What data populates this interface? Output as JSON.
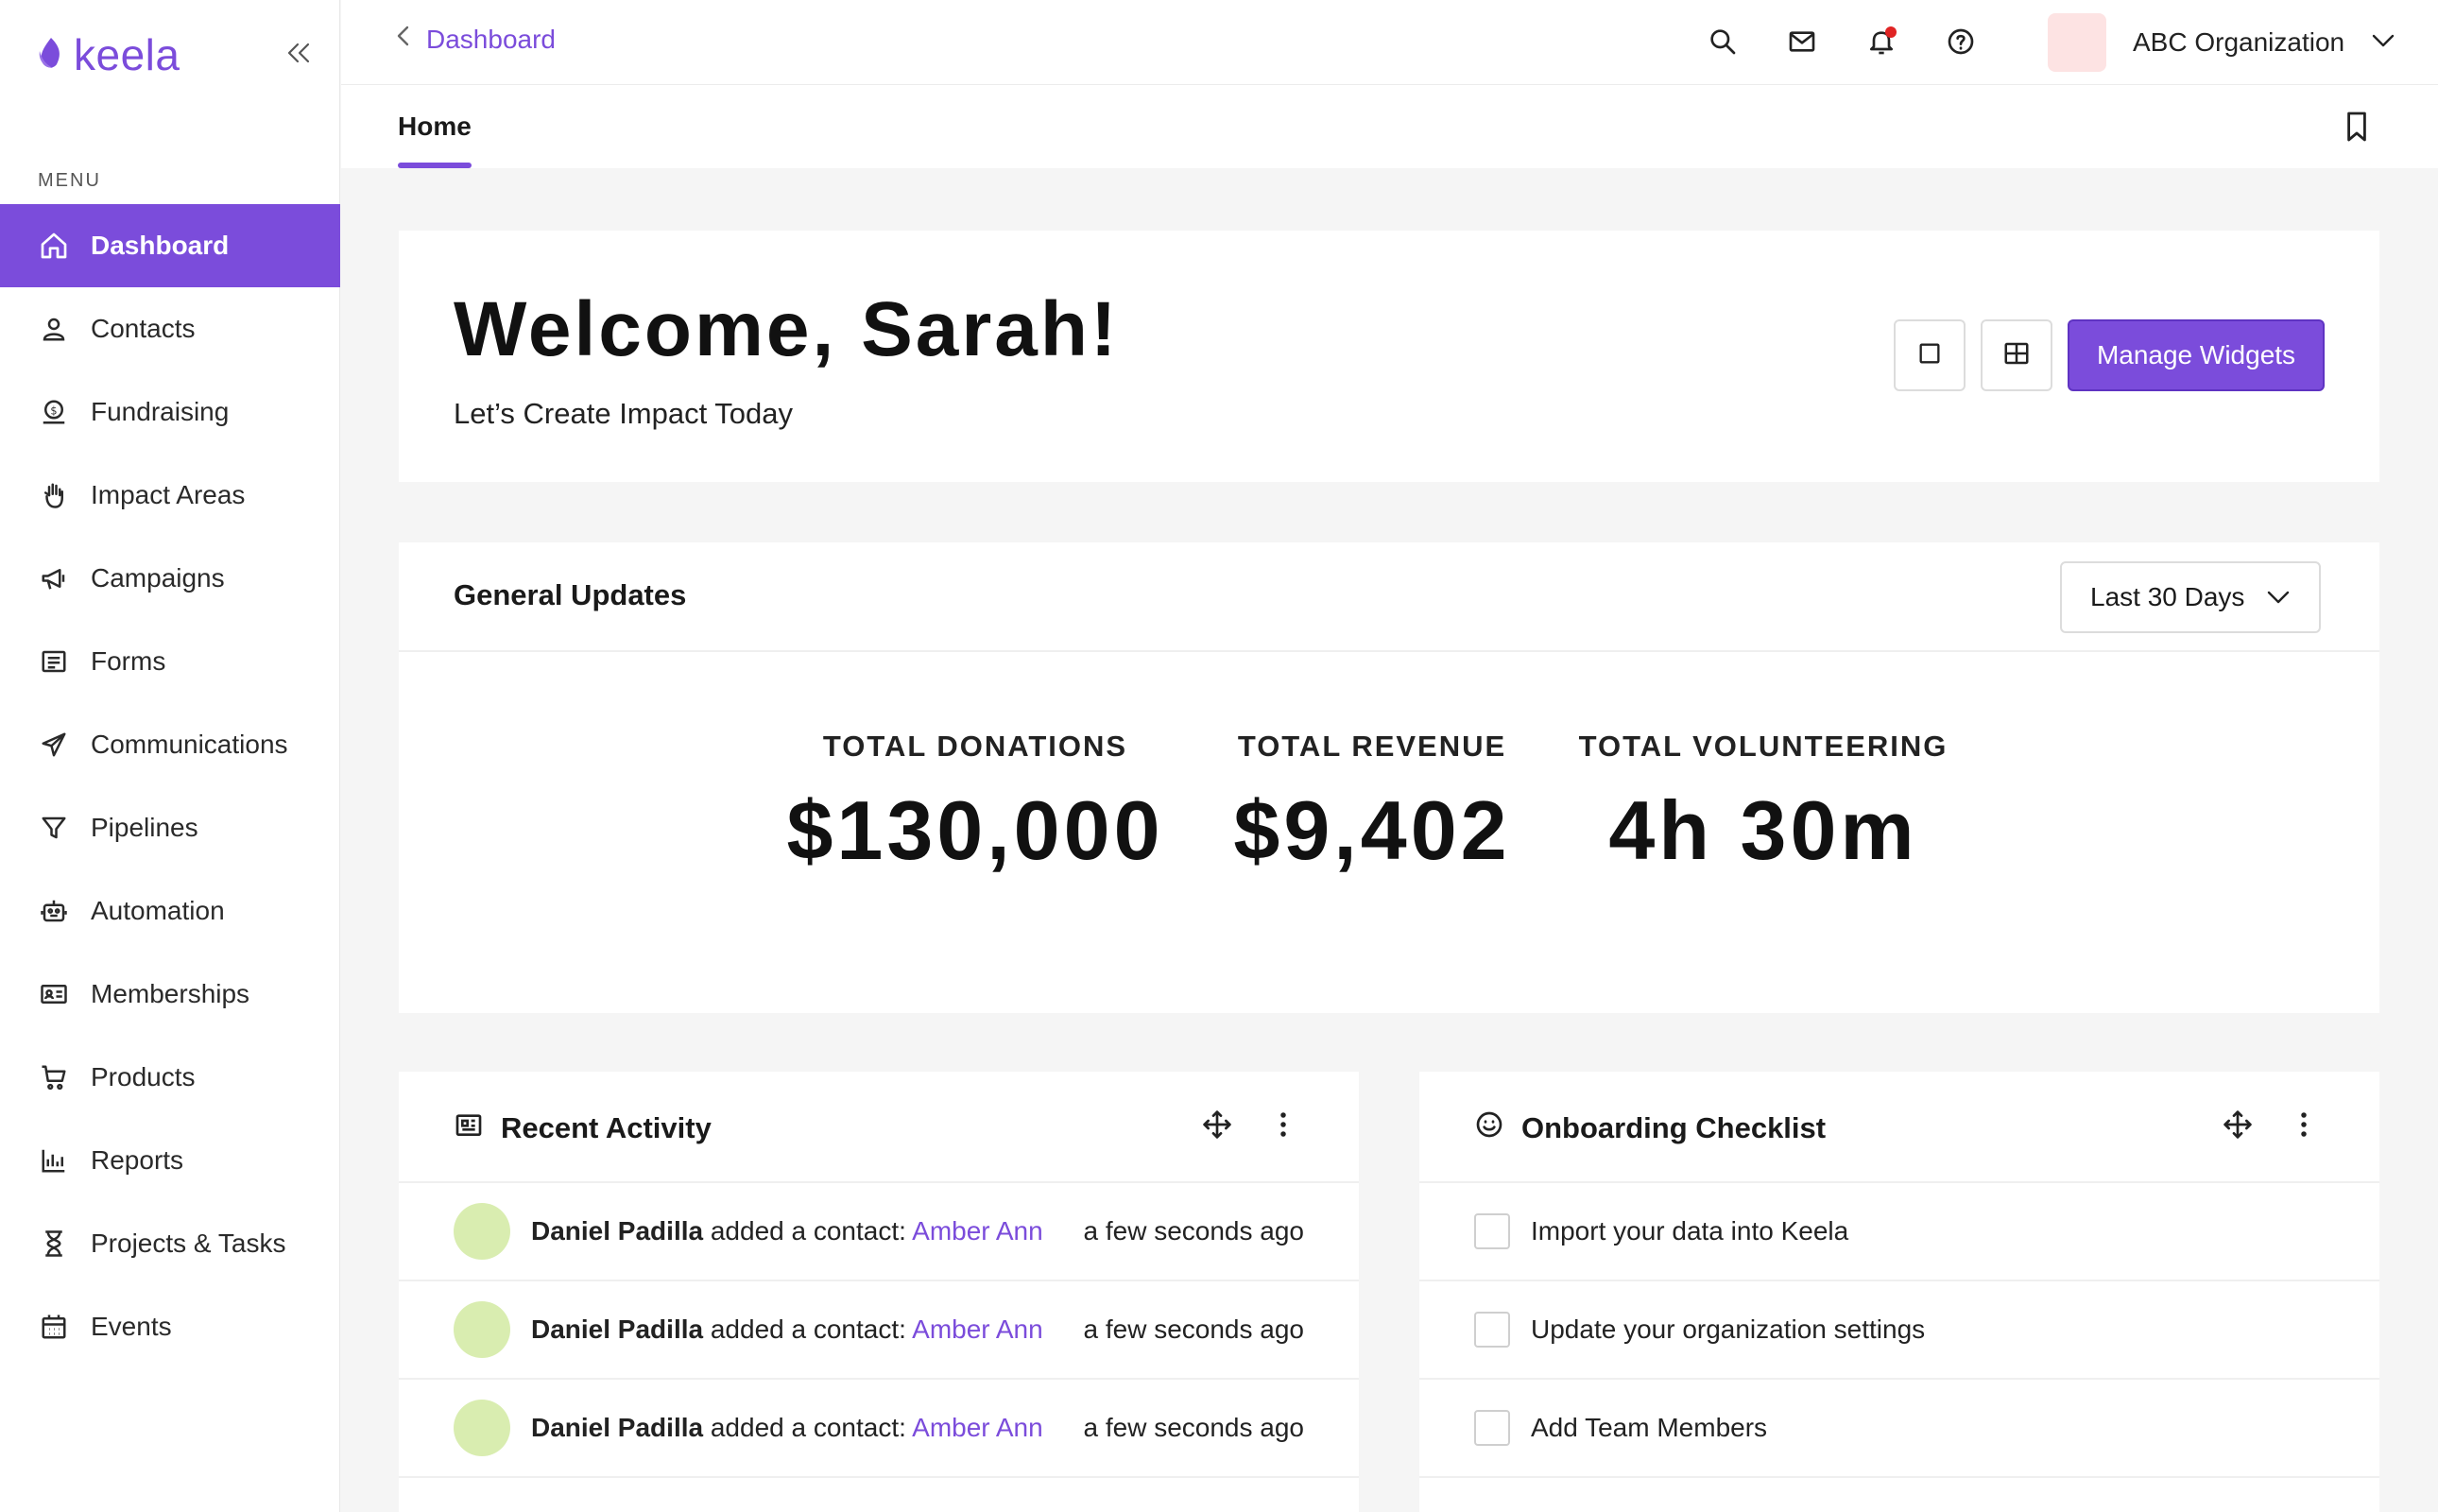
{
  "brand": {
    "logo_text": "keela",
    "accent": "#7b4cdb"
  },
  "sidebar": {
    "menu_label": "MENU",
    "items": [
      {
        "label": "Dashboard",
        "icon": "home-icon",
        "active": true
      },
      {
        "label": "Contacts",
        "icon": "person-icon"
      },
      {
        "label": "Fundraising",
        "icon": "fundraising-icon"
      },
      {
        "label": "Impact Areas",
        "icon": "hand-icon"
      },
      {
        "label": "Campaigns",
        "icon": "megaphone-icon"
      },
      {
        "label": "Forms",
        "icon": "form-icon"
      },
      {
        "label": "Communications",
        "icon": "paper-plane-icon"
      },
      {
        "label": "Pipelines",
        "icon": "filter-icon"
      },
      {
        "label": "Automation",
        "icon": "robot-icon"
      },
      {
        "label": "Memberships",
        "icon": "id-card-icon"
      },
      {
        "label": "Products",
        "icon": "cart-icon"
      },
      {
        "label": "Reports",
        "icon": "chart-icon"
      },
      {
        "label": "Projects & Tasks",
        "icon": "hourglass-icon"
      },
      {
        "label": "Events",
        "icon": "calendar-icon"
      }
    ]
  },
  "topbar": {
    "breadcrumb": "Dashboard",
    "organization": "ABC Organization"
  },
  "tabs": {
    "home": "Home"
  },
  "welcome": {
    "title": "Welcome, Sarah!",
    "subtitle": "Let’s Create Impact Today",
    "manage_label": "Manage Widgets"
  },
  "general_updates": {
    "title": "General Updates",
    "range": "Last 30 Days",
    "stats": [
      {
        "label": "TOTAL DONATIONS",
        "value": "$130,000"
      },
      {
        "label": "TOTAL REVENUE",
        "value": "$9,402"
      },
      {
        "label": "TOTAL VOLUNTEERING",
        "value": "4h 30m"
      }
    ]
  },
  "recent_activity": {
    "title": "Recent Activity",
    "items": [
      {
        "actor": "Daniel Padilla",
        "action": " added a contact: ",
        "target": "Amber Ann",
        "time": "a few seconds ago"
      },
      {
        "actor": "Daniel Padilla",
        "action": " added a contact: ",
        "target": "Amber Ann",
        "time": "a few seconds ago"
      },
      {
        "actor": "Daniel Padilla",
        "action": " added a contact: ",
        "target": "Amber Ann",
        "time": "a few seconds ago"
      }
    ]
  },
  "onboarding": {
    "title": "Onboarding Checklist",
    "items": [
      {
        "label": "Import your data into Keela"
      },
      {
        "label": "Update your organization settings"
      },
      {
        "label": "Add Team Members"
      }
    ]
  }
}
